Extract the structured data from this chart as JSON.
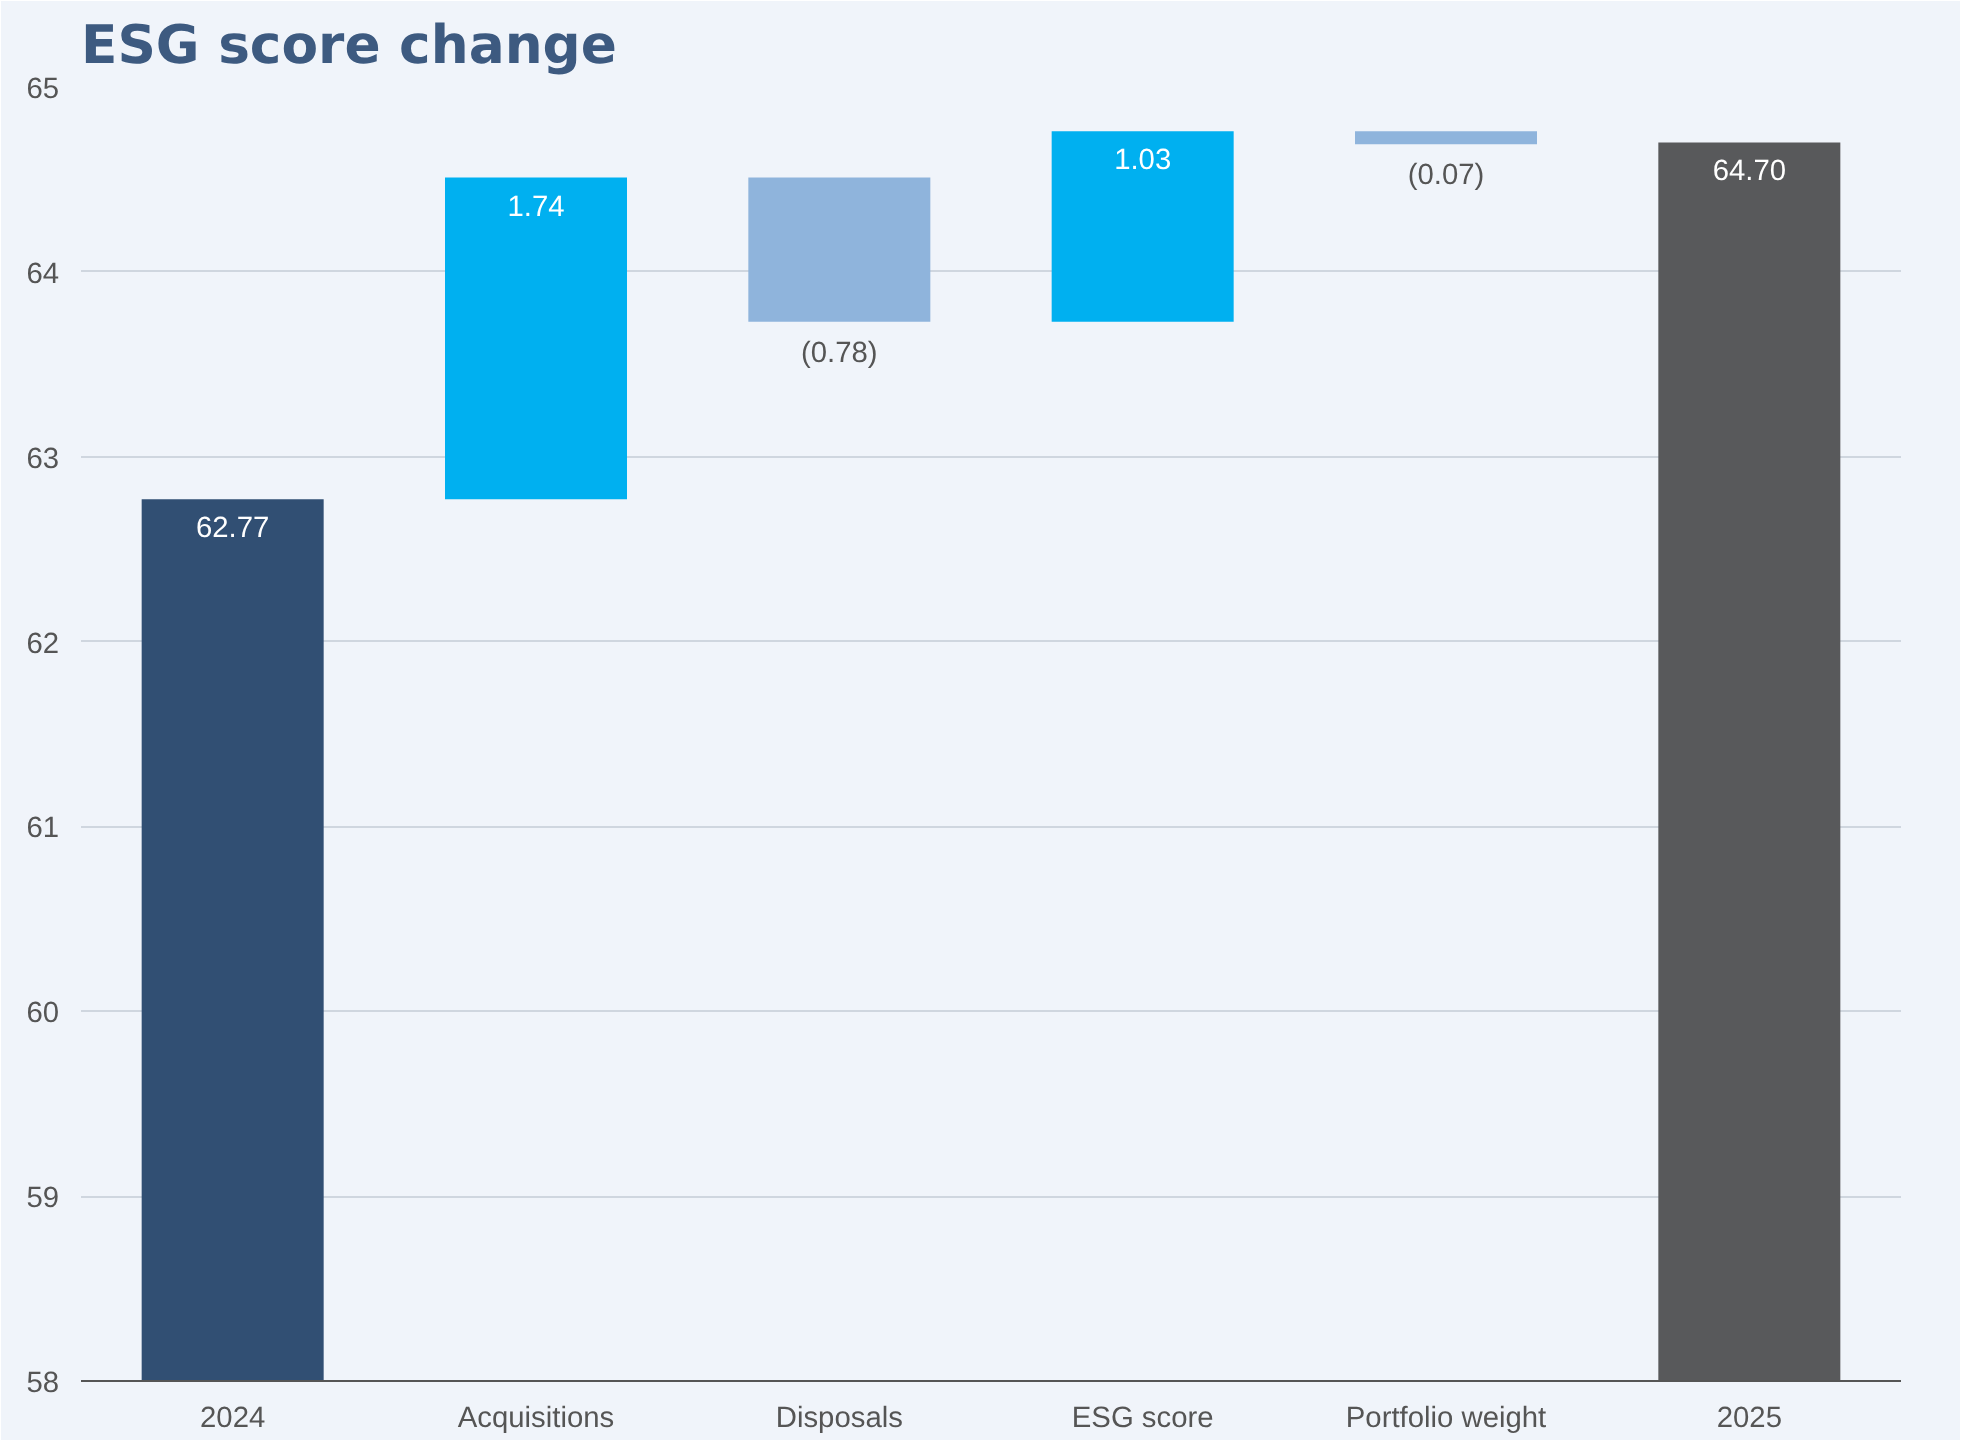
{
  "chart_data": {
    "type": "bar",
    "title": "ESG score change",
    "categories": [
      "2024",
      "Acquisitions",
      "Disposals",
      "ESG score",
      "Portfolio weight",
      "2025"
    ],
    "values": [
      62.77,
      1.74,
      -0.78,
      1.03,
      -0.07,
      64.7
    ],
    "base": [
      null,
      62.77,
      64.51,
      63.73,
      64.76,
      null
    ],
    "colors": [
      "#314f73",
      "#00b0f0",
      "#8fb4dc",
      "#00b0f0",
      "#8fb4dc",
      "#58595b"
    ],
    "value_labels": [
      "62.77",
      "1.74",
      "(0.78)",
      "1.03",
      "(0.07)",
      "64.70"
    ],
    "ylim": [
      58,
      65
    ],
    "yticks": [
      58,
      59,
      60,
      61,
      62,
      63,
      64,
      65
    ],
    "grid": "y"
  }
}
